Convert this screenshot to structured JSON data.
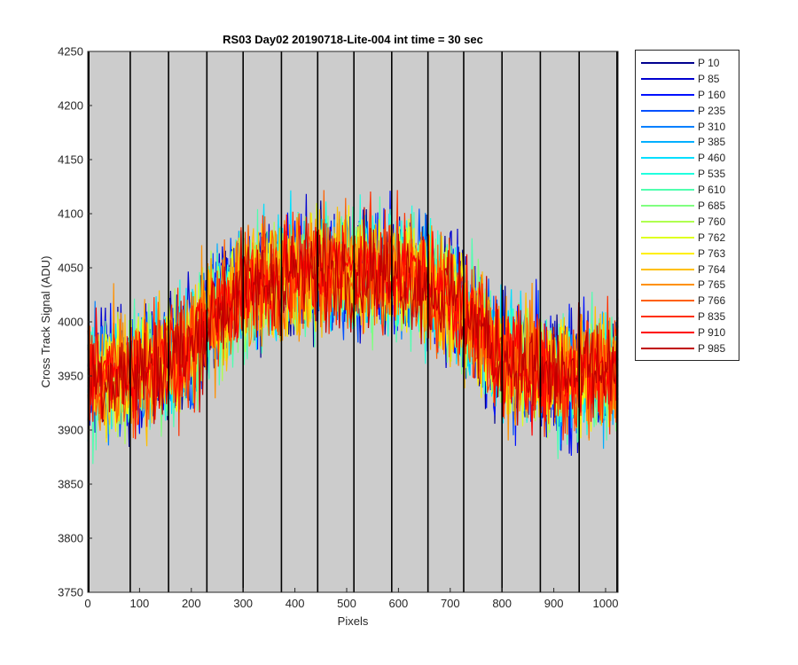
{
  "chart_data": {
    "type": "line",
    "title": "RS03 Day02 20190718-Lite-004 int time = 30 sec",
    "xlabel": "Pixels",
    "ylabel": "Cross Track Signal (ADU)",
    "xlim": [
      0,
      1024
    ],
    "ylim": [
      3750,
      4250
    ],
    "xticks": [
      0,
      100,
      200,
      300,
      400,
      500,
      600,
      700,
      800,
      900,
      1000
    ],
    "yticks": [
      3750,
      3800,
      3850,
      3900,
      3950,
      4000,
      4050,
      4100,
      4150,
      4200,
      4250
    ],
    "vertical_lines": [
      2,
      82,
      156,
      230,
      300,
      374,
      444,
      514,
      587,
      657,
      726,
      800,
      874,
      949,
      1022
    ],
    "background_color": "#cccccc",
    "grid": false,
    "legend_position": "outside-right",
    "profile_points": {
      "x": [
        0,
        100,
        200,
        250,
        300,
        400,
        500,
        600,
        700,
        750,
        800,
        900,
        1024
      ],
      "y": [
        3950,
        3955,
        3975,
        4010,
        4030,
        4045,
        4048,
        4045,
        4025,
        3995,
        3965,
        3950,
        3955
      ]
    },
    "noise_amplitude_adu": 60,
    "series": [
      {
        "name": "P 10",
        "color": "#00008f"
      },
      {
        "name": "P 85",
        "color": "#0000cf"
      },
      {
        "name": "P 160",
        "color": "#0010ff"
      },
      {
        "name": "P 235",
        "color": "#0050ff"
      },
      {
        "name": "P 310",
        "color": "#0080ff"
      },
      {
        "name": "P 385",
        "color": "#00afff"
      },
      {
        "name": "P 460",
        "color": "#00dfff"
      },
      {
        "name": "P 535",
        "color": "#20ffdf"
      },
      {
        "name": "P 610",
        "color": "#50ffaf"
      },
      {
        "name": "P 685",
        "color": "#80ff80"
      },
      {
        "name": "P 760",
        "color": "#afff50"
      },
      {
        "name": "P 762",
        "color": "#dfff20"
      },
      {
        "name": "P 763",
        "color": "#ffef00"
      },
      {
        "name": "P 764",
        "color": "#ffc000"
      },
      {
        "name": "P 765",
        "color": "#ff9000"
      },
      {
        "name": "P 766",
        "color": "#ff6000"
      },
      {
        "name": "P 835",
        "color": "#ff3000"
      },
      {
        "name": "P 910",
        "color": "#ff0000"
      },
      {
        "name": "P 985",
        "color": "#c00000"
      }
    ]
  }
}
